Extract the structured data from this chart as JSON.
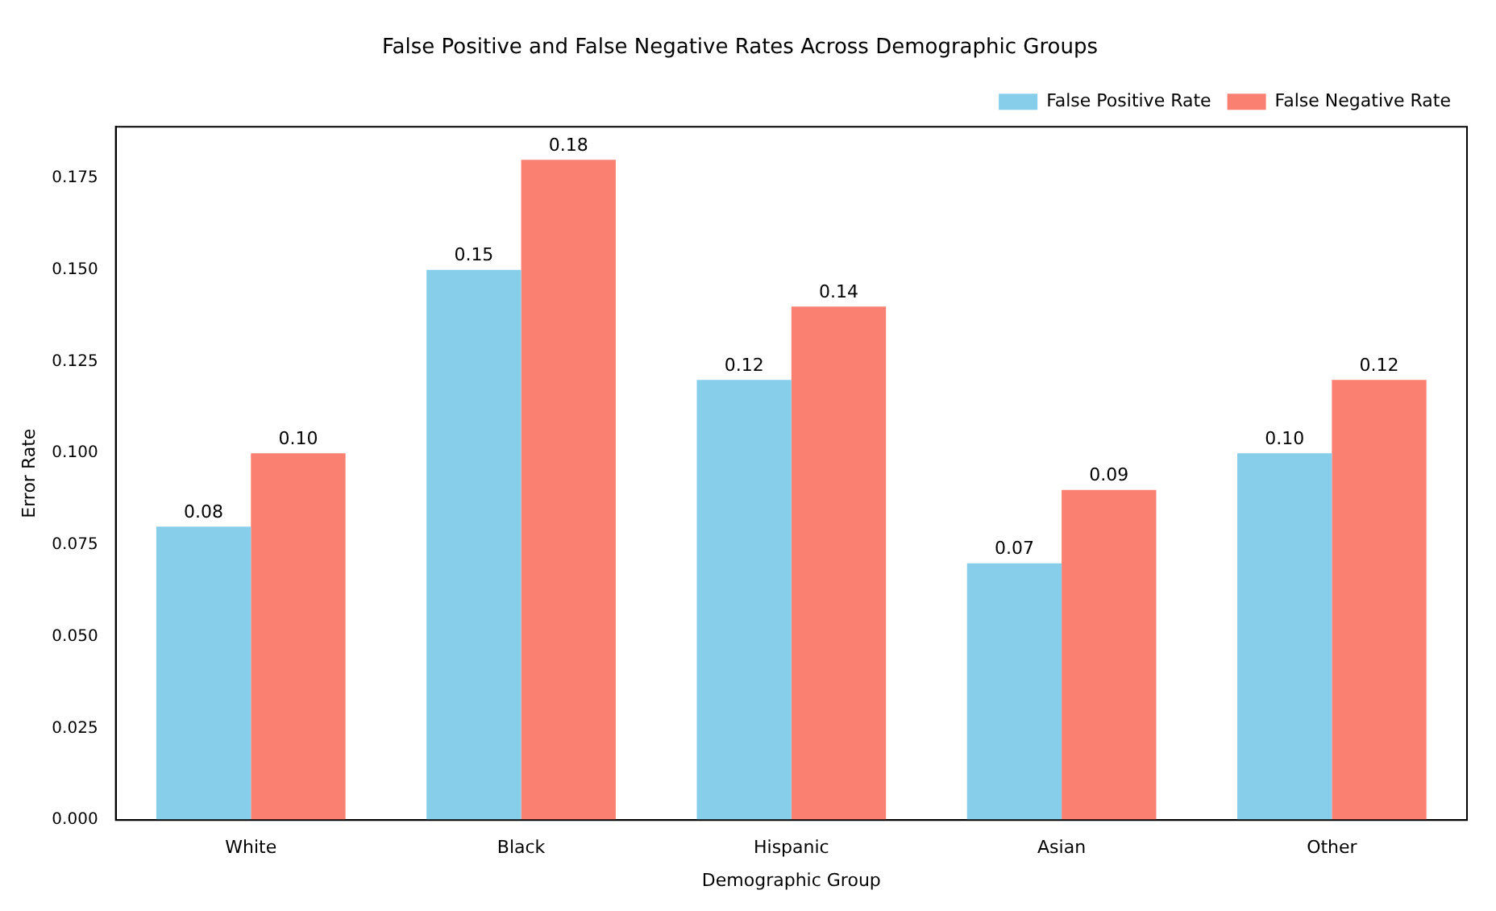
{
  "chart_data": {
    "type": "bar",
    "title": "False Positive and False Negative Rates Across Demographic Groups",
    "xlabel": "Demographic Group",
    "ylabel": "Error Rate",
    "categories": [
      "White",
      "Black",
      "Hispanic",
      "Asian",
      "Other"
    ],
    "series": [
      {
        "name": "False Positive Rate",
        "color": "#87ceeb",
        "values": [
          0.08,
          0.15,
          0.12,
          0.07,
          0.1
        ],
        "value_labels": [
          "0.08",
          "0.15",
          "0.12",
          "0.07",
          "0.10"
        ]
      },
      {
        "name": "False Negative Rate",
        "color": "#fa8072",
        "values": [
          0.1,
          0.18,
          0.14,
          0.09,
          0.12
        ],
        "value_labels": [
          "0.10",
          "0.18",
          "0.14",
          "0.09",
          "0.12"
        ]
      }
    ],
    "ylim": [
      0,
      0.189
    ],
    "yticks": [
      {
        "value": 0,
        "label": "0.000"
      },
      {
        "value": 0.025,
        "label": "0.025"
      },
      {
        "value": 0.05,
        "label": "0.050"
      },
      {
        "value": 0.075,
        "label": "0.075"
      },
      {
        "value": 0.1,
        "label": "0.100"
      },
      {
        "value": 0.125,
        "label": "0.125"
      },
      {
        "value": 0.15,
        "label": "0.150"
      },
      {
        "value": 0.175,
        "label": "0.175"
      }
    ],
    "grid": false,
    "legend": "top right"
  }
}
